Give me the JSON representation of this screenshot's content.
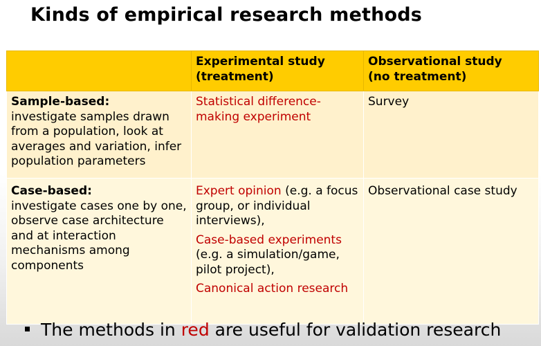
{
  "slide": {
    "title": "Kinds of empirical research methods"
  },
  "table": {
    "header": {
      "corner": "",
      "col_experimental_line1": "Experimental study",
      "col_experimental_line2": "(treatment)",
      "col_observational_line1": "Observational study",
      "col_observational_line2": "(no treatment)"
    },
    "rows": [
      {
        "heading": "Sample-based:",
        "description": "investigate samples drawn from a population, look at averages and variation, infer population parameters",
        "experimental": [
          {
            "red": "Statistical difference-making experiment",
            "black": ""
          }
        ],
        "observational": "Survey"
      },
      {
        "heading": "Case-based:",
        "description": "investigate cases one by one, observe case architecture and at interaction mechanisms among components",
        "experimental": [
          {
            "red": "Expert opinion",
            "black": " (e.g. a focus group, or individual interviews),"
          },
          {
            "red": "Case-based experiments",
            "black": " (e.g. a simulation/game, pilot project),"
          },
          {
            "red": "Canonical action research",
            "black": ""
          }
        ],
        "observational": "Observational case study"
      }
    ]
  },
  "bullet": {
    "prefix": "The methods in ",
    "highlight": "red",
    "suffix": " are useful for validation research",
    "icon": "square-bullet-icon"
  },
  "colors": {
    "header_fill": "#ffcc00",
    "row_fill_light": "#fff1cc",
    "row_fill_lighter": "#fff7dc",
    "highlight_red": "#c00000"
  }
}
